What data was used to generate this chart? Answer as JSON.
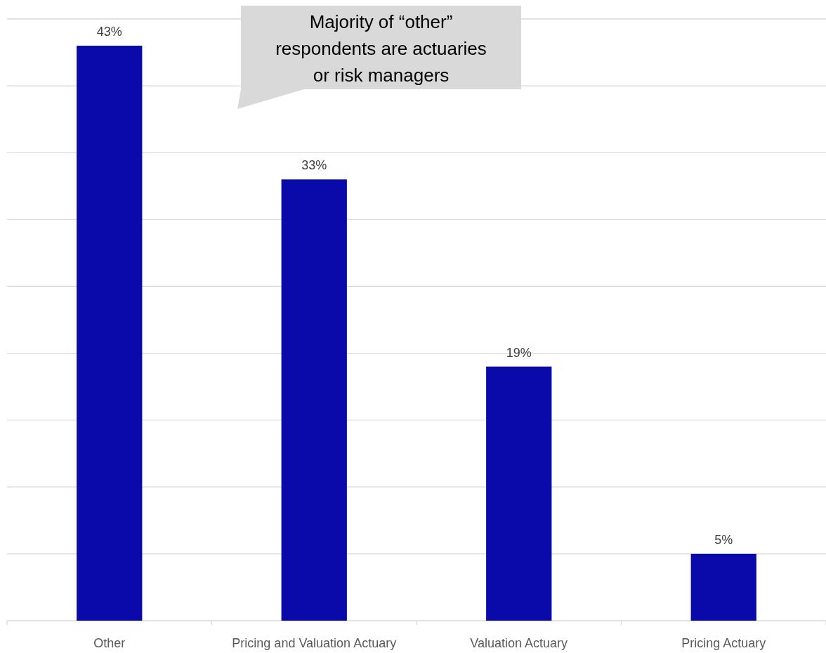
{
  "chart_data": {
    "type": "bar",
    "categories": [
      "Other",
      "Pricing and Valuation Actuary",
      "Valuation Actuary",
      "Pricing Actuary"
    ],
    "values": [
      43,
      33,
      19,
      5
    ],
    "color": "#0a0aab",
    "ylim": [
      0,
      45
    ],
    "yticks": [
      {
        "value": 0,
        "label": null
      },
      {
        "value": 5,
        "label": null
      },
      {
        "value": 10,
        "label": null
      },
      {
        "value": 15,
        "label": null
      },
      {
        "value": 20,
        "label": null
      },
      {
        "value": 25,
        "label": null
      },
      {
        "value": 30,
        "label": null
      },
      {
        "value": 35,
        "label": null
      },
      {
        "value": 40,
        "label": null
      },
      {
        "value": 45,
        "label": null
      }
    ],
    "tick_labels": "x",
    "grid": "y",
    "value_labels": [
      "43%",
      "33%",
      "19%",
      "5%"
    ],
    "annotations": [
      "Majority of “other” respondents are actuaries or risk managers"
    ]
  }
}
